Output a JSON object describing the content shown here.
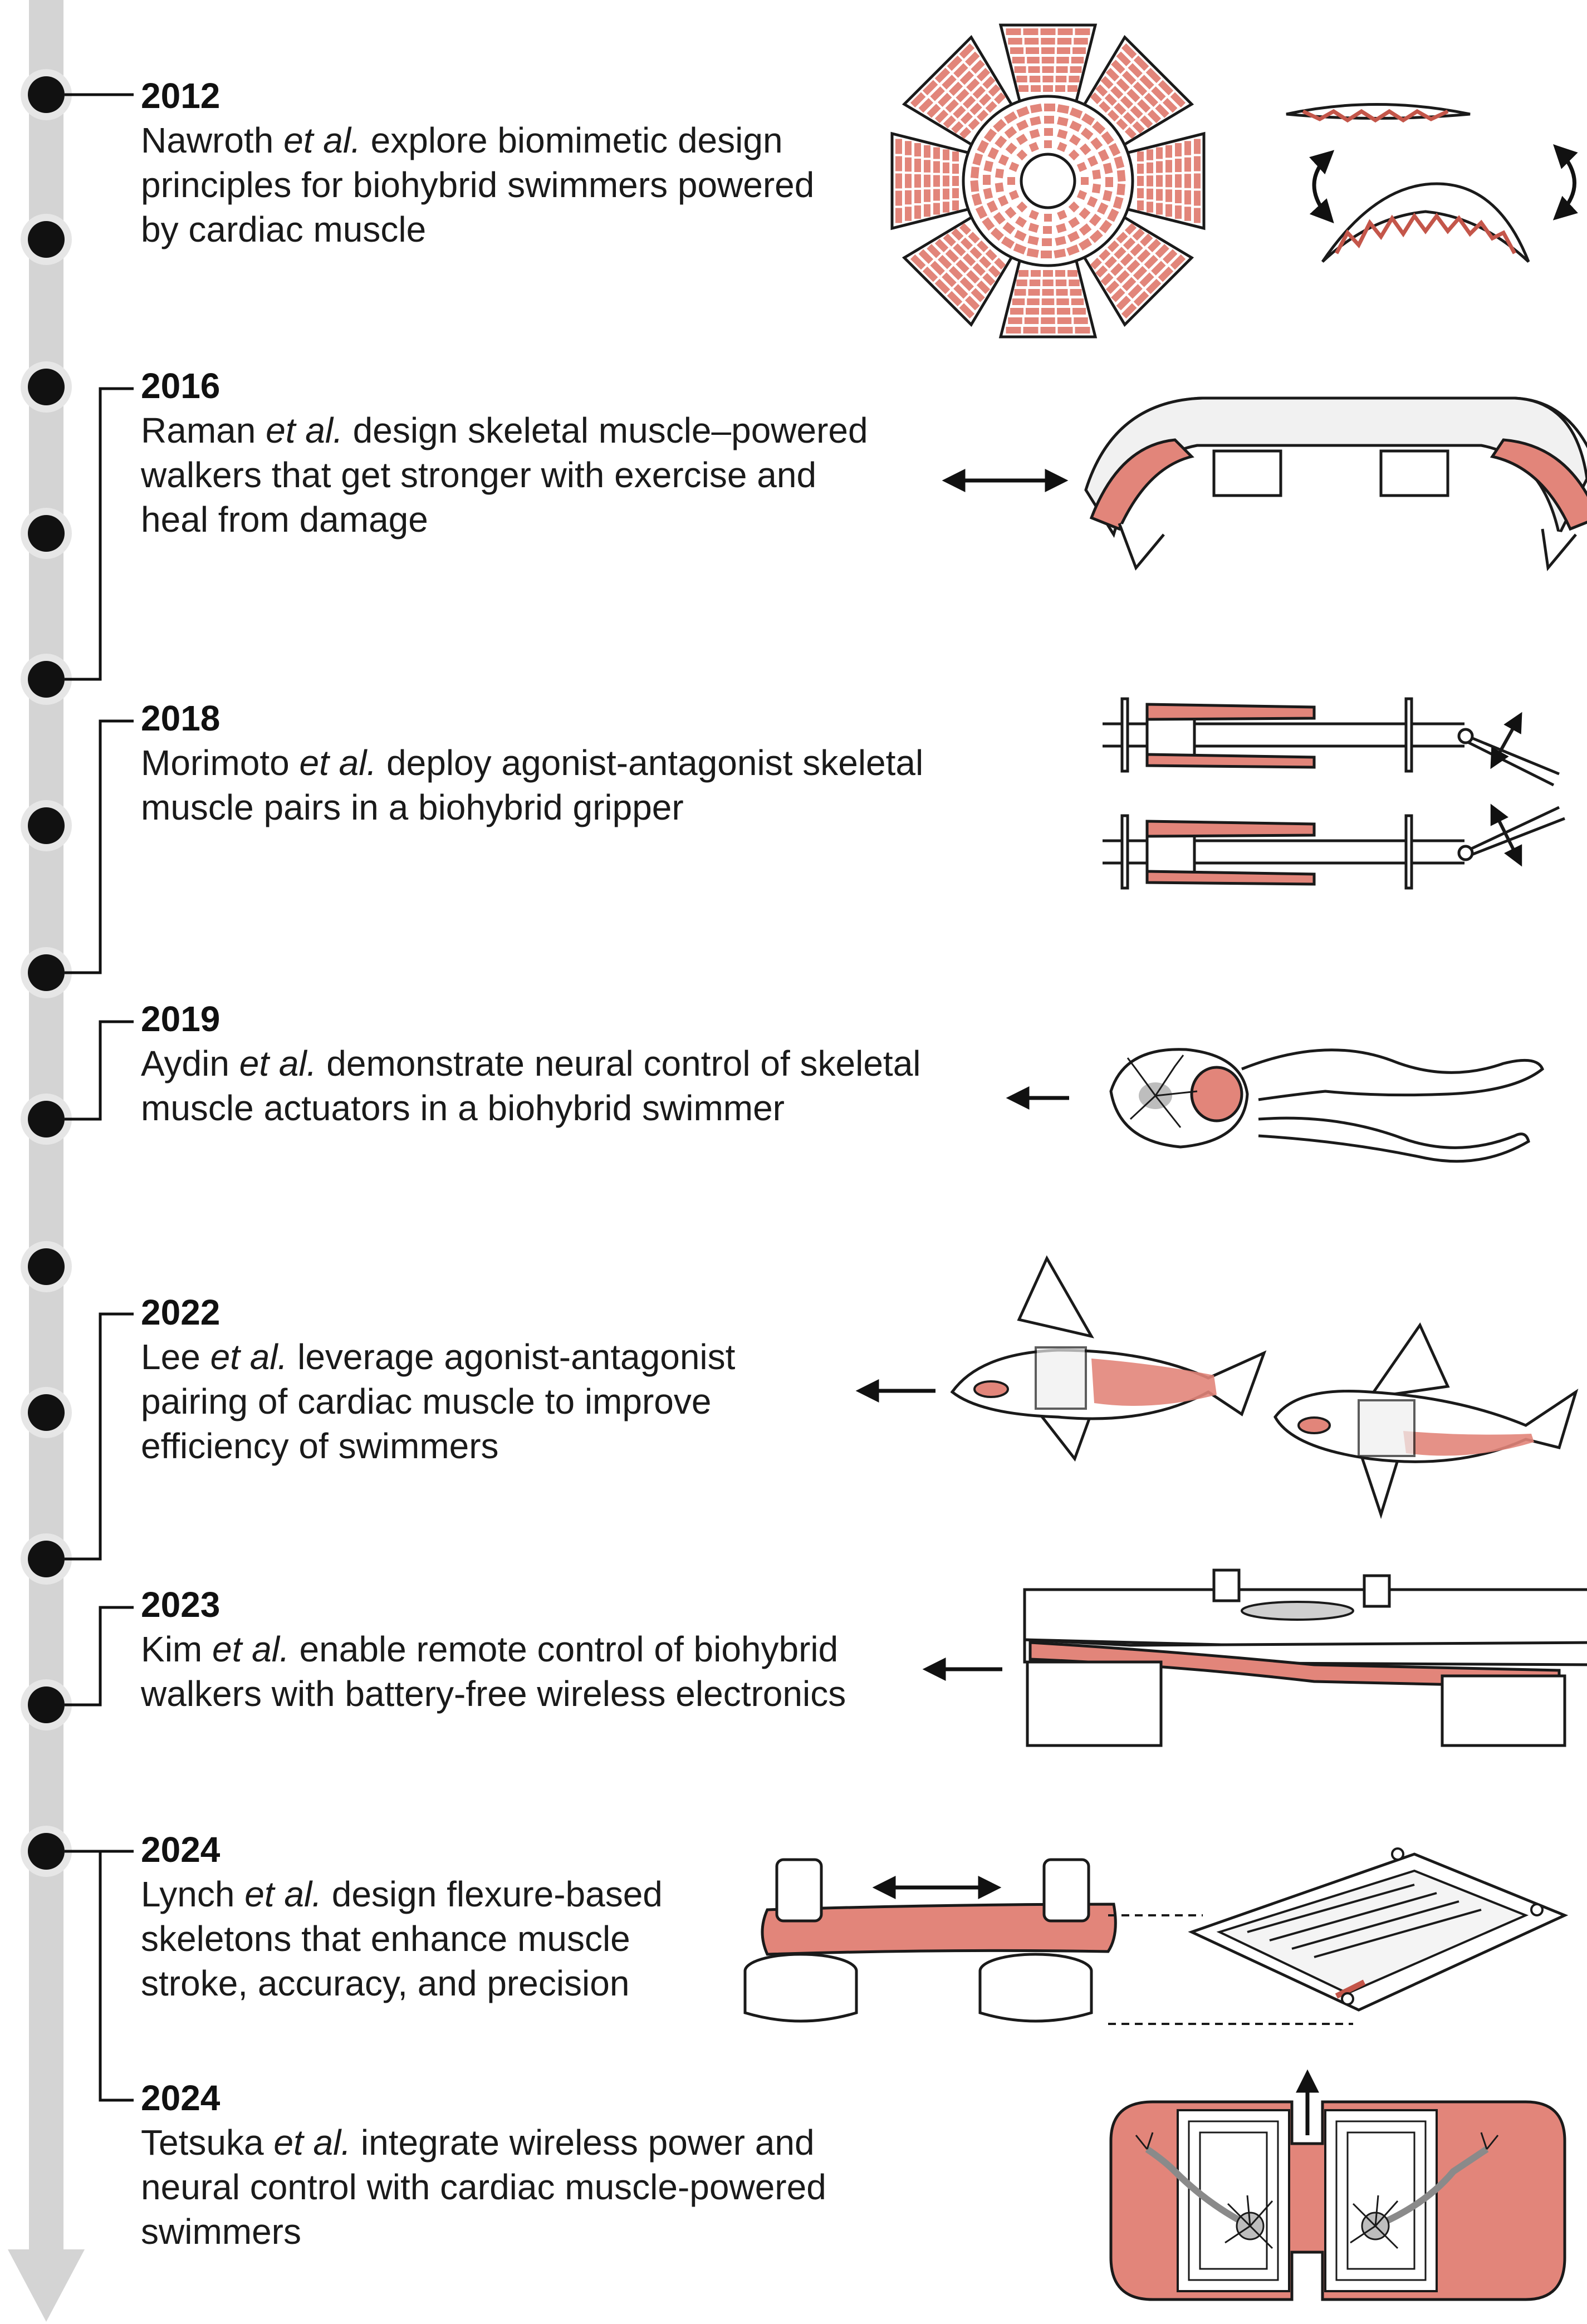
{
  "timeline": {
    "entries": [
      {
        "year": "2012",
        "author": "Nawroth",
        "etal": "et al.",
        "desc1": "explore biomimetic design",
        "lines": [
          "principles for biohybrid swimmers powered",
          "by cardiac muscle"
        ]
      },
      {
        "year": "2016",
        "author": "Raman",
        "etal": "et al.",
        "desc1": "design skeletal muscle–powered",
        "lines": [
          "walkers that get stronger with exercise and",
          "heal from damage"
        ]
      },
      {
        "year": "2018",
        "author": "Morimoto",
        "etal": "et al.",
        "desc1": "deploy agonist-antagonist skeletal",
        "lines": [
          "muscle pairs in a biohybrid gripper"
        ]
      },
      {
        "year": "2019",
        "author": "Aydin",
        "etal": "et al.",
        "desc1": "demonstrate neural control of skeletal",
        "lines": [
          "muscle actuators in a biohybrid swimmer"
        ]
      },
      {
        "year": "2022",
        "author": "Lee",
        "etal": "et al.",
        "desc1": "leverage agonist-antagonist",
        "lines": [
          "pairing of cardiac muscle to improve",
          "efficiency of swimmers"
        ]
      },
      {
        "year": "2023",
        "author": "Kim",
        "etal": "et al.",
        "desc1": "enable remote control of biohybrid",
        "lines": [
          "walkers with battery-free wireless electronics"
        ]
      },
      {
        "year": "2024",
        "author": "Lynch",
        "etal": "et al.",
        "desc1": "design flexure-based",
        "lines": [
          "skeletons that enhance muscle",
          "stroke, accuracy, and precision"
        ]
      },
      {
        "year": "2024",
        "author": "Tetsuka",
        "etal": "et al.",
        "desc1": "integrate wireless power and",
        "lines": [
          "neural control with cardiac muscle-powered",
          "swimmers"
        ]
      }
    ]
  },
  "colors": {
    "axis": "#d4d4d4",
    "dot": "#111111",
    "muscle": "#e2857a",
    "muscle_dark": "#c4564a",
    "outline": "#1a1a1a",
    "body": "#ffffff",
    "translucent": "#e9e9e9"
  },
  "icons": [
    "timeline-arrow-icon",
    "biohybrid-illustration-icons"
  ]
}
